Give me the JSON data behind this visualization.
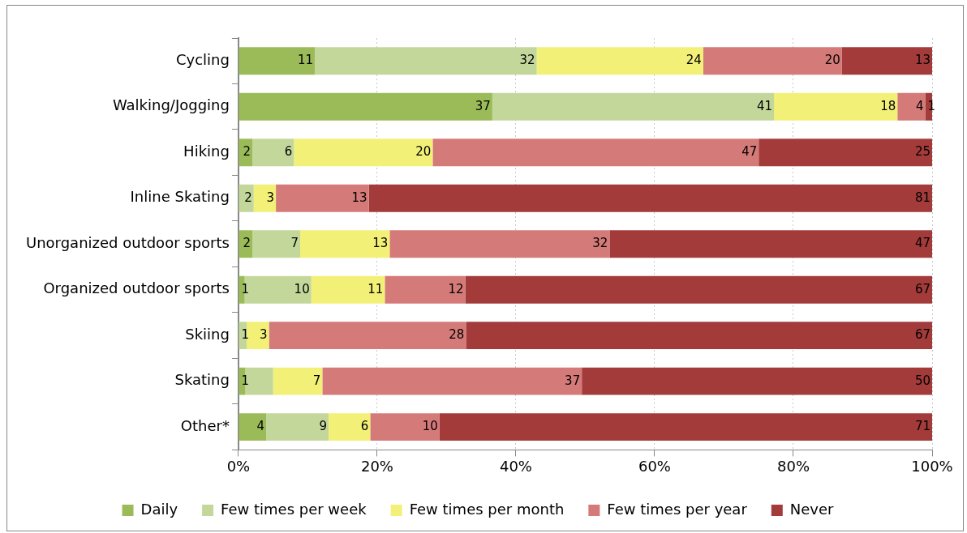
{
  "chart_data": {
    "type": "bar",
    "orientation": "horizontal",
    "stacked": true,
    "categories": [
      "Cycling",
      "Walking/Jogging",
      "Hiking",
      "Inline Skating",
      "Unorganized outdoor sports",
      "Organized outdoor sports",
      "Skiing",
      "Skating",
      "Other*"
    ],
    "series": [
      {
        "name": "Daily",
        "color": "#9bbb59",
        "values": [
          11,
          36.6,
          2,
          0,
          2.0,
          0.9,
          0,
          1.0,
          4
        ],
        "value_labels": [
          "11",
          "37",
          "2",
          null,
          "2",
          "1",
          null,
          "1",
          "4"
        ]
      },
      {
        "name": "Few times per week",
        "color": "#c4d79b",
        "values": [
          32,
          40.6,
          6,
          2.2,
          6.9,
          9.6,
          1.2,
          4.0,
          9
        ],
        "value_labels": [
          "32",
          "41",
          "6",
          "2",
          "7",
          "10",
          "1",
          null,
          "9"
        ]
      },
      {
        "name": "Few times per month",
        "color": "#f2f076",
        "values": [
          24,
          17.8,
          20,
          3.2,
          12.9,
          10.6,
          3.2,
          7.1,
          6
        ],
        "value_labels": [
          "24",
          "18",
          "20",
          "3",
          "13",
          "11",
          "3",
          "7",
          "6"
        ]
      },
      {
        "name": "Few times per year",
        "color": "#d47a78",
        "values": [
          20,
          4.0,
          47,
          13.4,
          31.7,
          11.6,
          28.4,
          37.4,
          10
        ],
        "value_labels": [
          "20",
          "4",
          "47",
          "13",
          "32",
          "12",
          "28",
          "37",
          "10"
        ]
      },
      {
        "name": "Never",
        "color": "#a23b3a",
        "values": [
          13,
          1.0,
          25,
          81.2,
          46.5,
          67.3,
          67.2,
          50.5,
          71
        ],
        "value_labels": [
          "13",
          "1",
          "25",
          "81",
          "47",
          "67",
          "67",
          "50",
          "71"
        ]
      }
    ],
    "xlim": [
      0,
      100
    ],
    "xticks": [
      {
        "value": 0,
        "label": "0%"
      },
      {
        "value": 20,
        "label": "20%"
      },
      {
        "value": 40,
        "label": "40%"
      },
      {
        "value": 60,
        "label": "60%"
      },
      {
        "value": 80,
        "label": "80%"
      },
      {
        "value": 100,
        "label": "100%"
      }
    ],
    "grid": "x",
    "legend": "bottom"
  }
}
